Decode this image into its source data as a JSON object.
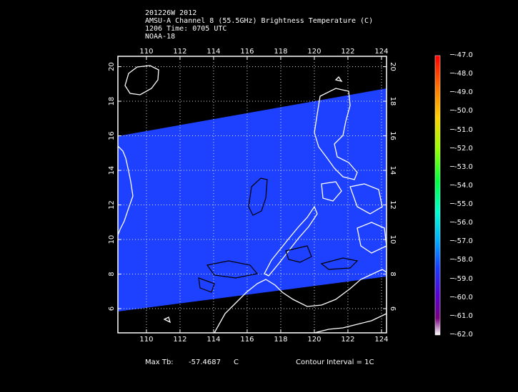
{
  "header": {
    "line1": "201226W 2012",
    "line2": "AMSU-A Channel 8 (55.5GHz) Brightness Temperature (C)",
    "line3": "1206 Time: 0705 UTC",
    "line4": "NOAA-18"
  },
  "map": {
    "lon_ticks": [
      "110",
      "112",
      "114",
      "116",
      "118",
      "120",
      "122",
      "124"
    ],
    "lat_ticks": [
      "20",
      "18",
      "16",
      "14",
      "12",
      "10",
      "8",
      "6"
    ],
    "lon_range": [
      108.3,
      124.3
    ],
    "lat_range": [
      4.6,
      20.6
    ],
    "swath_color": "#1a3cff",
    "background_color": "#000000",
    "coastline_color": "#ffffff",
    "contour_color": "#000000",
    "gridline_color": "#ffffff"
  },
  "colorbar": {
    "labels": [
      "-47.0",
      "-48.0",
      "-49.0",
      "-50.0",
      "-51.0",
      "-52.0",
      "-53.0",
      "-54.0",
      "-55.0",
      "-56.0",
      "-57.0",
      "-58.0",
      "-59.0",
      "-60.0",
      "-61.0",
      "-62.0"
    ],
    "top_value": -47.0,
    "bottom_value": -62.0
  },
  "footer": {
    "max_tb_label": "Max Tb:",
    "max_tb_value": "-57.4687",
    "max_tb_unit": "C",
    "contour_interval": "Contour Interval = 1C"
  }
}
